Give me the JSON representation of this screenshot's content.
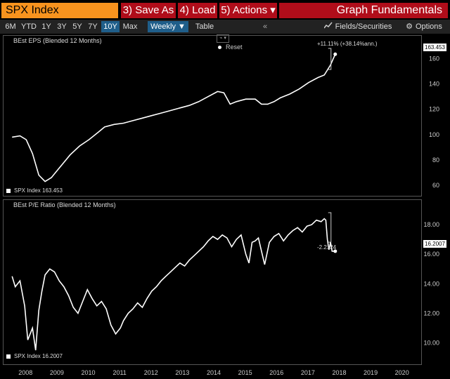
{
  "topbar": {
    "ticker": "SPX Index",
    "save_as": "3) Save As",
    "load": "4) Load",
    "actions": "5) Actions ▾",
    "title": "Graph Fundamentals"
  },
  "toolbar": {
    "periods": [
      "6M",
      "YTD",
      "1Y",
      "3Y",
      "5Y",
      "7Y",
      "10Y",
      "Max"
    ],
    "active_period": "10Y",
    "frequency": "Weekly ▼",
    "table": "Table",
    "collapse": "«",
    "fields": "Fields/Securities",
    "options": "Options"
  },
  "reset_popup": {
    "label": "Reset"
  },
  "panel1": {
    "title": "BEst EPS (Blended 12 Months)",
    "legend": "SPX Index  163.453",
    "last_value": "163.453",
    "annotation": "+11.11% (+38.14%ann.)"
  },
  "panel2": {
    "title": "BEst P/E Ratio (Blended 12 Months)",
    "legend": "SPX Index  16.2007",
    "last_value": "16.2007",
    "annotation": "-2.2124"
  },
  "colors": {
    "accent": "#f7931e",
    "button_red": "#b00d1a",
    "active_blue": "#1f5e8a",
    "line": "#ffffff"
  },
  "chart_data": [
    {
      "type": "line",
      "title": "BEst EPS (Blended 12 Months)",
      "ylim": [
        55,
        168
      ],
      "yticks": [
        60,
        80,
        100,
        120,
        140,
        160
      ],
      "xlim": [
        2008.0,
        2021.0
      ],
      "series": [
        {
          "name": "SPX Index",
          "x": [
            2008.05,
            2008.3,
            2008.5,
            2008.7,
            2008.9,
            2009.1,
            2009.3,
            2009.5,
            2009.7,
            2009.9,
            2010.2,
            2010.5,
            2010.8,
            2011.0,
            2011.3,
            2011.6,
            2011.9,
            2012.2,
            2012.5,
            2012.8,
            2013.1,
            2013.4,
            2013.7,
            2014.0,
            2014.3,
            2014.6,
            2014.8,
            2015.0,
            2015.2,
            2015.5,
            2015.8,
            2016.0,
            2016.2,
            2016.4,
            2016.6,
            2016.9,
            2017.2,
            2017.5,
            2017.8,
            2018.0,
            2018.2,
            2018.35
          ],
          "y": [
            98,
            99,
            96,
            85,
            68,
            63,
            66,
            72,
            78,
            84,
            91,
            96,
            102,
            106,
            108,
            109,
            111,
            113,
            115,
            117,
            119,
            121,
            123,
            126,
            130,
            134,
            133,
            124,
            126,
            128,
            128,
            124,
            124,
            126,
            129,
            132,
            136,
            141,
            145,
            147,
            155,
            163.453
          ]
        }
      ],
      "annotation": "+11.11% (+38.14%ann.)"
    },
    {
      "type": "line",
      "title": "BEst P/E Ratio (Blended 12 Months)",
      "ylim": [
        9.5,
        19.0
      ],
      "yticks": [
        10.0,
        12.0,
        14.0,
        16.0,
        18.0
      ],
      "xlim": [
        2008.0,
        2021.0
      ],
      "series": [
        {
          "name": "SPX Index",
          "x": [
            2008.05,
            2008.15,
            2008.3,
            2008.45,
            2008.55,
            2008.7,
            2008.8,
            2008.9,
            2009.0,
            2009.1,
            2009.25,
            2009.4,
            2009.55,
            2009.7,
            2009.85,
            2010.0,
            2010.15,
            2010.3,
            2010.45,
            2010.6,
            2010.75,
            2010.9,
            2011.05,
            2011.2,
            2011.35,
            2011.5,
            2011.6,
            2011.75,
            2011.9,
            2012.05,
            2012.2,
            2012.35,
            2012.5,
            2012.65,
            2012.8,
            2012.95,
            2013.1,
            2013.25,
            2013.4,
            2013.55,
            2013.7,
            2013.85,
            2014.0,
            2014.15,
            2014.3,
            2014.45,
            2014.6,
            2014.75,
            2014.9,
            2015.05,
            2015.2,
            2015.35,
            2015.5,
            2015.6,
            2015.7,
            2015.8,
            2015.9,
            2016.0,
            2016.1,
            2016.25,
            2016.4,
            2016.55,
            2016.7,
            2016.85,
            2017.0,
            2017.15,
            2017.3,
            2017.45,
            2017.6,
            2017.75,
            2017.9,
            2018.0,
            2018.05,
            2018.1,
            2018.15,
            2018.2,
            2018.25,
            2018.35
          ],
          "y": [
            14.5,
            13.8,
            14.2,
            12.5,
            10.2,
            11.0,
            9.5,
            12.2,
            13.5,
            14.6,
            15.0,
            14.8,
            14.2,
            13.8,
            13.2,
            12.4,
            12.0,
            12.8,
            13.6,
            13.0,
            12.5,
            12.8,
            12.3,
            11.2,
            10.6,
            11.0,
            11.5,
            12.0,
            12.3,
            12.7,
            12.4,
            13.0,
            13.5,
            13.8,
            14.2,
            14.5,
            14.8,
            15.1,
            15.4,
            15.2,
            15.6,
            15.9,
            16.2,
            16.5,
            16.9,
            17.2,
            17.0,
            17.3,
            17.1,
            16.5,
            17.0,
            17.3,
            16.0,
            15.4,
            16.8,
            16.9,
            17.1,
            16.2,
            15.3,
            16.8,
            17.2,
            17.4,
            16.9,
            17.3,
            17.6,
            17.8,
            17.5,
            17.9,
            18.0,
            18.3,
            18.2,
            18.4,
            18.3,
            17.0,
            16.3,
            16.8,
            16.2,
            16.2007
          ]
        }
      ],
      "annotation": "-2.2124"
    }
  ],
  "xaxis": {
    "labels": [
      "2008",
      "2009",
      "2010",
      "2011",
      "2012",
      "2013",
      "2014",
      "2015",
      "2016",
      "2017",
      "2018",
      "2019",
      "2020"
    ]
  }
}
